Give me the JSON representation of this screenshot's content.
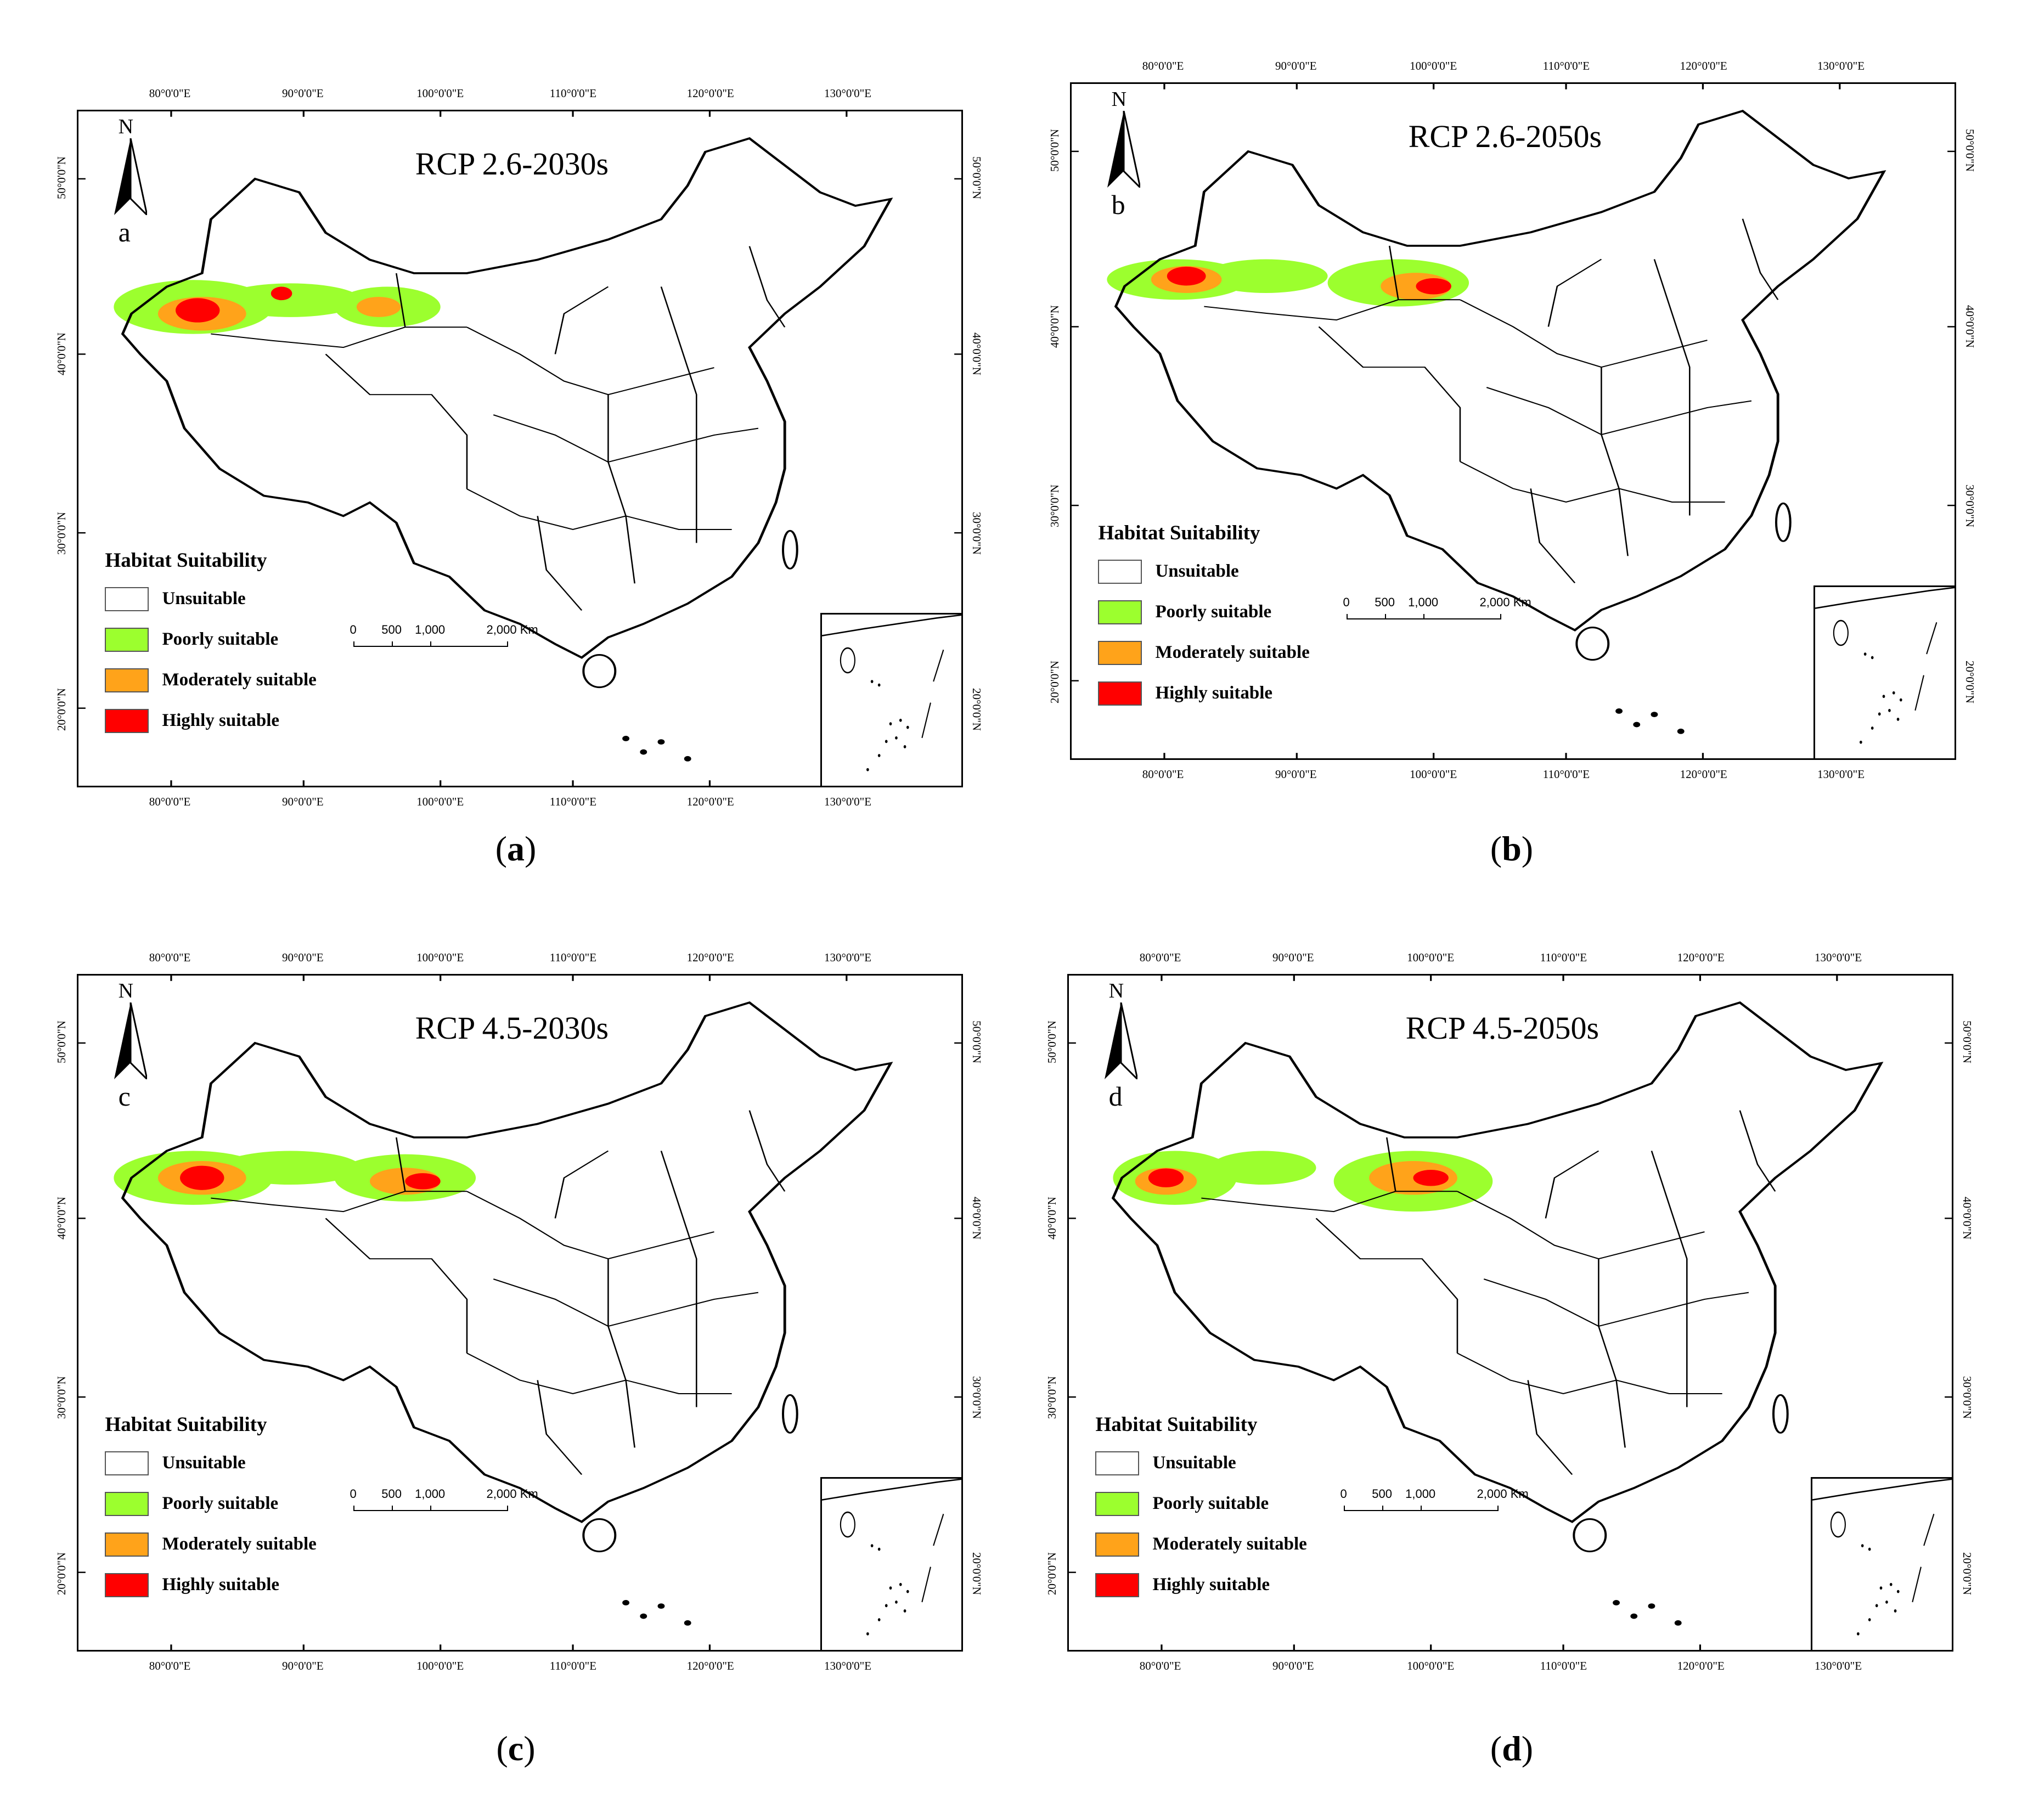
{
  "legend": {
    "title": "Habitat Suitability",
    "items": [
      {
        "label": "Unsuitable",
        "color": "#ffffff"
      },
      {
        "label": "Poorly suitable",
        "color": "#9cff2e"
      },
      {
        "label": "Moderately suitable",
        "color": "#ffa31a"
      },
      {
        "label": "Highly suitable",
        "color": "#ff0000"
      }
    ]
  },
  "scale_bar": {
    "labels": [
      "0",
      "500",
      "1,000",
      "2,000 Km"
    ]
  },
  "lon_ticks": [
    "80°0'0\"E",
    "90°0'0\"E",
    "100°0'0\"E",
    "110°0'0\"E",
    "120°0'0\"E",
    "130°0'0\"E"
  ],
  "lat_ticks": [
    "50°0'0\"N",
    "40°0'0\"N",
    "30°0'0\"N",
    "20°0'0\"N"
  ],
  "north_label": "N",
  "panels": [
    {
      "title": "RCP 2.6-2030s",
      "letter": "a",
      "caption_open": "(",
      "caption_letter": "a",
      "caption_close": ")"
    },
    {
      "title": "RCP 2.6-2050s",
      "letter": "b",
      "caption_open": "(",
      "caption_letter": "b",
      "caption_close": ")"
    },
    {
      "title": "RCP 4.5-2030s",
      "letter": "c",
      "caption_open": "(",
      "caption_letter": "c",
      "caption_close": ")"
    },
    {
      "title": "RCP 4.5-2050s",
      "letter": "d",
      "caption_open": "(",
      "caption_letter": "d",
      "caption_close": ")"
    }
  ]
}
